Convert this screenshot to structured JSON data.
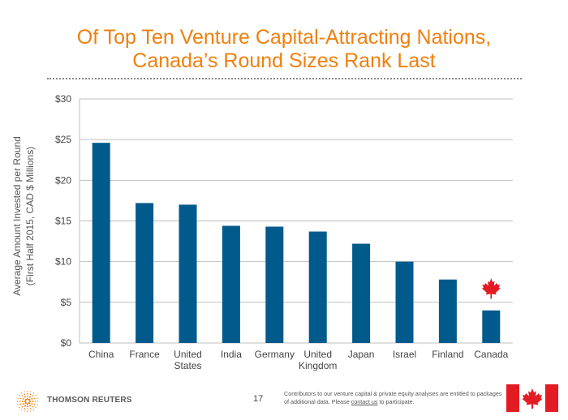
{
  "title": {
    "line1": "Of Top Ten Venture Capital-Attracting Nations,",
    "line2": "Canada’s Round Sizes Rank Last"
  },
  "chart_data": {
    "type": "bar",
    "categories": [
      [
        "China"
      ],
      [
        "France"
      ],
      [
        "United",
        "States"
      ],
      [
        "India"
      ],
      [
        "Germany"
      ],
      [
        "United",
        "Kingdom"
      ],
      [
        "Japan"
      ],
      [
        "Israel"
      ],
      [
        "Finland"
      ],
      [
        "Canada"
      ]
    ],
    "values": [
      24.6,
      17.2,
      17.0,
      14.4,
      14.3,
      13.7,
      12.2,
      10.0,
      7.8,
      4.0
    ],
    "ylabel_line1": "Average Amount Invested per Round",
    "ylabel_line2": "(First Half 2015, CAD $ Millions)",
    "ylim": [
      0,
      30
    ],
    "yticks": [
      0,
      5,
      10,
      15,
      20,
      25,
      30
    ],
    "ytick_labels": [
      "$0",
      "$5",
      "$10",
      "$15",
      "$20",
      "$25",
      "$30"
    ],
    "grid": true,
    "bar_color": "#005a8b",
    "grid_color": "#bfbfbf",
    "highlight_icon": "maple-leaf-icon",
    "highlight_category_index": 9,
    "highlight_color": "#e31b23"
  },
  "footer": {
    "brand": "THOMSON REUTERS",
    "logo_icon": "thomson-reuters-dots-icon",
    "page_number": "17",
    "note_prefix": "Contributors to our venture capital & private equity analyses are entitled to packages of additional data. Please ",
    "note_link": "contact us",
    "note_suffix": " to participate.",
    "flag_icon": "canada-flag-icon"
  }
}
